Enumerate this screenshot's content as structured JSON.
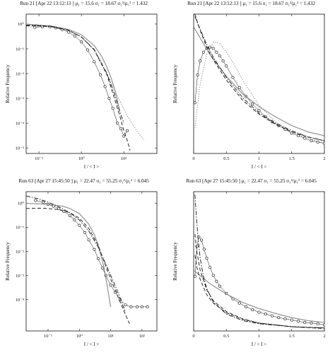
{
  "chart_data": [
    {
      "type": "scatter",
      "title": "Run 21 [Apr 22 13:12:13 ]  μ₁ = 15.6 σ₁ = 18.67 σ₁²/μ₁² = 1.432",
      "xlabel": "I / < I >",
      "ylabel": "Relative Frequency",
      "xscale": "log",
      "yscale": "log",
      "xlim": [
        0.05,
        60
      ],
      "ylim": [
        6e-06,
        2.5
      ],
      "xticks": [
        0.1,
        1,
        10
      ],
      "xticklabels": [
        "10⁻¹",
        "10⁰",
        "10¹"
      ],
      "yticks": [
        1,
        0.1,
        0.01,
        0.001,
        0.0001,
        1e-05
      ],
      "yticklabels": [
        "10⁰",
        "10⁻¹",
        "10⁻²",
        "10⁻³",
        "10⁻⁴",
        "10⁻⁵"
      ],
      "grid": false,
      "series": [
        {
          "style": "markers",
          "x": [
            0.08,
            0.12,
            0.18,
            0.25,
            0.35,
            0.5,
            0.7,
            1.0,
            1.4,
            2.0,
            2.8,
            3.6,
            4.5,
            5.5,
            7.0,
            8.5,
            10.0,
            12.0
          ],
          "y": [
            0.74,
            0.78,
            0.77,
            0.7,
            0.6,
            0.47,
            0.33,
            0.19,
            0.09,
            0.03,
            0.009,
            0.003,
            0.001,
            0.0004,
            0.0001,
            6e-05,
            3e-05,
            5e-05
          ]
        },
        {
          "style": "solid-gray",
          "x": [
            0.05,
            0.1,
            0.2,
            0.5,
            1,
            2,
            3,
            4,
            5,
            6,
            7,
            8
          ],
          "y": [
            1.0,
            0.9,
            0.82,
            0.61,
            0.37,
            0.135,
            0.05,
            0.018,
            0.0067,
            0.0025,
            0.0009,
            0.0003
          ]
        },
        {
          "style": "dashed",
          "x": [
            0.05,
            0.1,
            0.2,
            0.5,
            1,
            2,
            4,
            6,
            8,
            10,
            12,
            14
          ],
          "y": [
            0.85,
            0.85,
            0.8,
            0.56,
            0.3,
            0.09,
            0.009,
            0.001,
            0.0002,
            5e-05,
            2e-05,
            8e-06
          ]
        },
        {
          "style": "dotted",
          "x": [
            0.05,
            0.1,
            0.2,
            0.5,
            1,
            2,
            4,
            8,
            12,
            20,
            30
          ],
          "y": [
            0.75,
            0.8,
            0.78,
            0.55,
            0.3,
            0.09,
            0.01,
            0.0008,
            0.0002,
            5e-05,
            2e-05
          ]
        },
        {
          "style": "dashdot",
          "x": [
            0.05,
            0.1,
            0.2,
            0.5,
            1,
            2,
            4,
            6,
            8,
            10
          ],
          "y": [
            0.9,
            0.88,
            0.8,
            0.55,
            0.3,
            0.095,
            0.01,
            0.0015,
            0.0003,
            0.0001
          ]
        }
      ]
    },
    {
      "type": "line",
      "title": "Run 21 [Apr 22 13:12:13 ]  μ₁ = 15.6 σ₁ = 18.67 σ₁²/μ₁² = 1.432",
      "xlabel": "I / < I >",
      "ylabel": "Relative Frequency",
      "xlim": [
        0,
        2
      ],
      "ylim": [
        0,
        1.1
      ],
      "xticks": [
        0,
        0.5,
        1,
        1.5,
        2
      ],
      "xticklabels": [
        "0",
        "0.5",
        "1",
        "1.5",
        "2"
      ],
      "grid": false,
      "series": [
        {
          "style": "markers",
          "x": [
            0.02,
            0.06,
            0.1,
            0.15,
            0.2,
            0.25,
            0.3,
            0.35,
            0.4,
            0.45,
            0.5,
            0.6,
            0.7,
            0.8,
            0.9,
            1.0,
            1.1,
            1.2,
            1.3,
            1.4,
            1.5,
            1.6,
            1.7,
            1.8,
            1.9,
            2.0
          ],
          "y": [
            0.4,
            0.62,
            0.73,
            0.8,
            0.83,
            0.84,
            0.83,
            0.8,
            0.77,
            0.73,
            0.69,
            0.6,
            0.52,
            0.45,
            0.39,
            0.34,
            0.29,
            0.25,
            0.22,
            0.19,
            0.16,
            0.14,
            0.12,
            0.1,
            0.09,
            0.08
          ]
        },
        {
          "style": "solid-gray",
          "x": [
            0,
            0.25,
            0.5,
            0.75,
            1.0,
            1.25,
            1.5,
            1.75,
            2.0
          ],
          "y": [
            1.0,
            0.78,
            0.61,
            0.47,
            0.37,
            0.29,
            0.22,
            0.17,
            0.14
          ]
        },
        {
          "style": "dashed",
          "x": [
            0.02,
            0.05,
            0.1,
            0.2,
            0.3,
            0.5,
            0.75,
            1.0,
            1.25,
            1.5,
            1.75,
            2.0
          ],
          "y": [
            1.1,
            1.05,
            0.97,
            0.84,
            0.74,
            0.58,
            0.42,
            0.31,
            0.23,
            0.17,
            0.13,
            0.1
          ]
        },
        {
          "style": "dotted",
          "x": [
            0.02,
            0.1,
            0.2,
            0.3,
            0.4,
            0.5,
            0.6,
            0.75,
            1.0,
            1.25,
            1.5,
            1.75,
            2.0
          ],
          "y": [
            0.2,
            0.55,
            0.78,
            0.88,
            0.87,
            0.8,
            0.72,
            0.58,
            0.38,
            0.25,
            0.17,
            0.12,
            0.08
          ]
        },
        {
          "style": "dashdot",
          "x": [
            0.02,
            0.1,
            0.2,
            0.3,
            0.5,
            0.75,
            1.0,
            1.25,
            1.5,
            1.75,
            2.0
          ],
          "y": [
            1.08,
            0.98,
            0.86,
            0.76,
            0.6,
            0.44,
            0.32,
            0.24,
            0.18,
            0.13,
            0.1
          ]
        }
      ]
    },
    {
      "type": "scatter",
      "title": "Run 63 [Apr 27 15:45:50 ]  μ₁ = 22.47 σ₁ = 55.25 σ₁²/μ₁² = 6.045",
      "xlabel": "I / < I >",
      "ylabel": "Relative Frequency",
      "xscale": "log",
      "yscale": "log",
      "xlim": [
        0.02,
        300
      ],
      "ylim": [
        5e-06,
        3
      ],
      "xticks": [
        0.1,
        1,
        10,
        100
      ],
      "xticklabels": [
        "10⁻¹",
        "10⁰",
        "10¹",
        "10²"
      ],
      "yticks": [
        1,
        0.1,
        0.01,
        0.001,
        0.0001
      ],
      "yticklabels": [
        "10⁰",
        "10⁻¹",
        "10⁻²",
        "10⁻³",
        "10⁻⁴"
      ],
      "grid": false,
      "series": [
        {
          "style": "markers",
          "x": [
            0.04,
            0.07,
            0.1,
            0.15,
            0.22,
            0.32,
            0.5,
            0.7,
            1.0,
            1.5,
            2.0,
            3.0,
            4.0,
            5.5,
            7.0,
            10,
            14,
            20,
            30,
            45,
            70,
            100,
            150
          ],
          "y": [
            1.3,
            1.1,
            0.9,
            0.75,
            0.6,
            0.45,
            0.3,
            0.2,
            0.12,
            0.06,
            0.03,
            0.012,
            0.005,
            0.002,
            0.001,
            0.0004,
            0.0002,
            0.0001,
            6e-05,
            5e-05,
            5e-05,
            5e-05,
            5e-05
          ]
        },
        {
          "style": "solid-gray",
          "x": [
            0.02,
            0.1,
            0.3,
            0.5,
            1,
            2,
            3,
            4,
            6,
            8,
            10
          ],
          "y": [
            0.98,
            0.9,
            0.74,
            0.6,
            0.37,
            0.135,
            0.05,
            0.018,
            0.0025,
            0.0003,
            5e-05
          ]
        },
        {
          "style": "dashed",
          "x": [
            0.02,
            0.05,
            0.1,
            0.2,
            0.5,
            1,
            2,
            4,
            8,
            15,
            25,
            40
          ],
          "y": [
            0.6,
            0.62,
            0.6,
            0.55,
            0.4,
            0.24,
            0.09,
            0.018,
            0.0015,
            0.0002,
            4e-05,
            1e-05
          ]
        },
        {
          "style": "dashdot",
          "x": [
            0.02,
            0.05,
            0.1,
            0.2,
            0.5,
            1,
            2,
            4,
            8,
            15,
            30
          ],
          "y": [
            2.0,
            1.5,
            1.1,
            0.75,
            0.4,
            0.2,
            0.07,
            0.015,
            0.002,
            0.0003,
            3e-05
          ]
        }
      ]
    },
    {
      "type": "line",
      "title": "Run 63 [Apr 27 15:45:50 ]  μ₁ = 22.47 σ₁ = 55.25 σ₁²/μ₁² = 6.045",
      "xlabel": "I / < I >",
      "ylabel": "Relative Frequency",
      "xlim": [
        0,
        2
      ],
      "ylim": [
        0,
        2.3
      ],
      "xticks": [
        0,
        0.5,
        1,
        1.5,
        2
      ],
      "xticklabels": [
        "0",
        "0.5",
        "1",
        "1.5",
        "2"
      ],
      "grid": false,
      "series": [
        {
          "style": "markers",
          "x": [
            0.02,
            0.05,
            0.08,
            0.12,
            0.16,
            0.2,
            0.25,
            0.3,
            0.35,
            0.4,
            0.5,
            0.6,
            0.7,
            0.8,
            0.9,
            1.0,
            1.1,
            1.2,
            1.3,
            1.4,
            1.5,
            1.6,
            1.7,
            1.8,
            1.9,
            2.0
          ],
          "y": [
            0.9,
            1.4,
            1.55,
            1.5,
            1.35,
            1.2,
            1.05,
            0.92,
            0.82,
            0.74,
            0.62,
            0.53,
            0.46,
            0.4,
            0.35,
            0.31,
            0.28,
            0.25,
            0.22,
            0.2,
            0.18,
            0.16,
            0.14,
            0.13,
            0.12,
            0.1
          ]
        },
        {
          "style": "solid-gray",
          "x": [
            0,
            0.25,
            0.5,
            0.75,
            1.0,
            1.25,
            1.5,
            1.75,
            2.0
          ],
          "y": [
            1.0,
            0.78,
            0.61,
            0.47,
            0.37,
            0.29,
            0.22,
            0.17,
            0.14
          ]
        },
        {
          "style": "dashed",
          "x": [
            0.02,
            0.05,
            0.1,
            0.2,
            0.3,
            0.5,
            0.75,
            1.0,
            1.5,
            2.0
          ],
          "y": [
            1.6,
            1.3,
            1.0,
            0.68,
            0.5,
            0.32,
            0.2,
            0.13,
            0.07,
            0.04
          ]
        },
        {
          "style": "dashed",
          "x": [
            0.02,
            0.05,
            0.1,
            0.2,
            0.3,
            0.5,
            0.75,
            1.0,
            1.5,
            2.0
          ],
          "y": [
            1.25,
            1.05,
            0.85,
            0.6,
            0.46,
            0.3,
            0.19,
            0.13,
            0.07,
            0.05
          ]
        },
        {
          "style": "dashdot",
          "x": [
            0.02,
            0.04,
            0.07,
            0.1,
            0.15,
            0.2,
            0.3,
            0.5,
            0.75,
            1.0,
            1.5,
            2.0
          ],
          "y": [
            2.25,
            1.9,
            1.5,
            1.2,
            0.9,
            0.7,
            0.48,
            0.28,
            0.17,
            0.12,
            0.07,
            0.05
          ]
        }
      ]
    }
  ]
}
